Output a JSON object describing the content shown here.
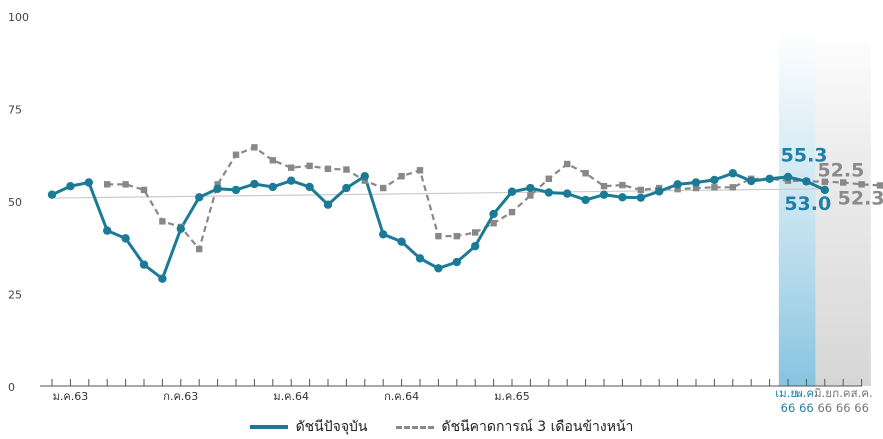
{
  "chart_data": {
    "type": "line",
    "title": "",
    "xlabel": "",
    "ylabel": "",
    "ylim": [
      0,
      100
    ],
    "yticks": [
      "0",
      "25",
      "50",
      "75",
      "100"
    ],
    "x_tick_labels": [
      {
        "i": 1,
        "label": "ม.ค.63"
      },
      {
        "i": 7,
        "label": "ก.ค.63"
      },
      {
        "i": 13,
        "label": "ม.ค.64"
      },
      {
        "i": 19,
        "label": "ก.ค.64"
      },
      {
        "i": 25,
        "label": "ม.ค.65"
      }
    ],
    "end_month_labels": [
      {
        "i": 40,
        "top": "เม.ย.",
        "bottom": "66",
        "color": "#1f7fa6"
      },
      {
        "i": 41,
        "top": "พ.ค.",
        "bottom": "66",
        "color": "#1f7fa6"
      },
      {
        "i": 42,
        "top": "มิ.ย.",
        "bottom": "66",
        "color": "#777777"
      },
      {
        "i": 43,
        "top": "ก.ค.",
        "bottom": "66",
        "color": "#777777"
      },
      {
        "i": 44,
        "top": "ส.ค.",
        "bottom": "66",
        "color": "#777777"
      }
    ],
    "series": [
      {
        "name": "ดัชนีปัจจุบัน",
        "color": "#1b7a95",
        "style": "solid",
        "values": [
          51.7,
          54.0,
          55.0,
          42.0,
          39.9,
          32.8,
          29.0,
          42.5,
          51.0,
          53.3,
          53.0,
          54.6,
          53.8,
          55.5,
          53.8,
          49.0,
          53.5,
          56.7,
          41.0,
          39.0,
          34.5,
          31.8,
          33.5,
          37.8,
          46.5,
          52.5,
          53.5,
          52.3,
          52.0,
          50.3,
          51.7,
          51.0,
          50.9,
          52.6,
          54.5,
          55.0,
          55.7,
          57.5,
          55.4,
          56.0,
          56.5,
          55.3,
          53.0
        ]
      },
      {
        "name": "ดัชนีคาดการณ์ 3 เดือนข้างหน้า",
        "color": "#888888",
        "style": "dashed",
        "start_index": 3,
        "values": [
          54.5,
          54.5,
          53.0,
          44.5,
          43.0,
          37.0,
          54.5,
          62.5,
          64.5,
          61.0,
          59.0,
          59.5,
          58.7,
          58.5,
          55.5,
          53.5,
          56.7,
          58.3,
          40.5,
          40.5,
          41.5,
          44.0,
          47.0,
          51.5,
          56.0,
          60.0,
          57.5,
          54.0,
          54.3,
          53.0,
          53.5,
          53.2,
          53.5,
          53.7,
          53.7,
          56.0,
          56.0,
          55.5,
          55.3,
          55.2,
          55.0,
          54.5,
          54.2
        ]
      }
    ],
    "trend_line": {
      "start": 50.8,
      "end": 53.3,
      "color": "#cccccc"
    },
    "callouts": [
      {
        "text": "55.3",
        "color": "#1f7fa6"
      },
      {
        "text": "52.5",
        "color": "#8a8a8a"
      },
      {
        "text": "53.0",
        "color": "#1f7fa6"
      },
      {
        "text": "52.3",
        "color": "#8a8a8a"
      }
    ],
    "highlights": [
      {
        "from_index": 40,
        "to_index": 41,
        "color": "#b8dcec"
      },
      {
        "from_index": 42,
        "to_index": 44,
        "color": "#e4e4e4"
      }
    ]
  },
  "legend": {
    "current_label": "ดัชนีปัจจุบัน",
    "forecast_label": "ดัชนีคาดการณ์ 3 เดือนข้างหน้า"
  }
}
